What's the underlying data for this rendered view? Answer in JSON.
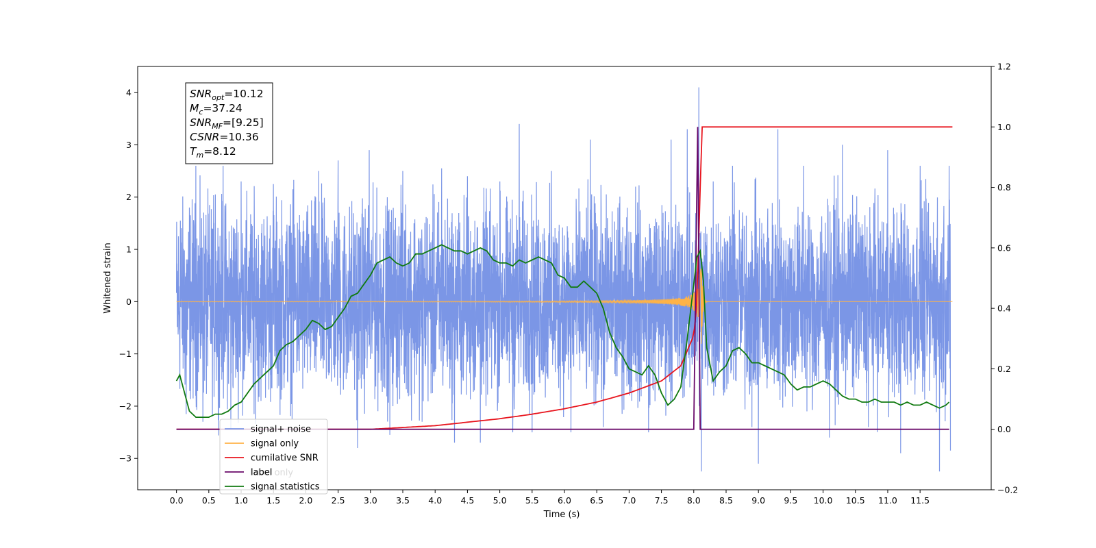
{
  "chart_data": {
    "type": "line",
    "title": "",
    "xlabel": "Time (s)",
    "ylabel": "Whitened strain",
    "y2label": "",
    "xlim": [
      -0.6,
      12.6
    ],
    "ylim": [
      -3.6,
      4.5
    ],
    "y2lim": [
      -0.2,
      1.2
    ],
    "x_ticks": [
      0.0,
      0.5,
      1.0,
      1.5,
      2.0,
      2.5,
      3.0,
      3.5,
      4.0,
      4.5,
      5.0,
      5.5,
      6.0,
      6.5,
      7.0,
      7.5,
      8.0,
      8.5,
      9.0,
      9.5,
      10.0,
      10.5,
      11.0,
      11.5
    ],
    "x_tick_labels": [
      "0.0",
      "0.5",
      "1.0",
      "1.5",
      "2.0",
      "2.5",
      "3.0",
      "3.5",
      "4.0",
      "4.5",
      "5.0",
      "5.5",
      "6.0",
      "6.5",
      "7.0",
      "7.5",
      "8.0",
      "8.5",
      "9.0",
      "9.5",
      "10.0",
      "10.5",
      "11.0",
      "11.5"
    ],
    "y_ticks": [
      -3,
      -2,
      -1,
      0,
      1,
      2,
      3,
      4
    ],
    "y_tick_labels": [
      "−3",
      "−2",
      "−1",
      "0",
      "1",
      "2",
      "3",
      "4"
    ],
    "y2_ticks": [
      -0.2,
      0.0,
      0.2,
      0.4,
      0.6,
      0.8,
      1.0,
      1.2
    ],
    "y2_tick_labels": [
      "−0.2",
      "0.0",
      "0.2",
      "0.4",
      "0.6",
      "0.8",
      "1.0",
      "1.2"
    ],
    "grid": false,
    "legend_position": "lower-left",
    "annotation": {
      "lines": [
        {
          "main": "SNR",
          "sub": "opt",
          "value": "=10.12"
        },
        {
          "main": "M",
          "sub": "c",
          "value": "=37.24"
        },
        {
          "main": "SNR",
          "sub": "MF",
          "value": "=[9.25]"
        },
        {
          "main": "CSNR",
          "sub": "",
          "value": "=10.36"
        },
        {
          "main": "T",
          "sub": "m",
          "value": "=8.12"
        }
      ]
    },
    "series": [
      {
        "name": "signal+ noise",
        "axis": "left",
        "color": "#7b96e6",
        "amplitude": 1.25,
        "peaks": [
          [
            0.06,
            1.55
          ],
          [
            0.15,
            -2.15
          ],
          [
            0.2,
            1.8
          ],
          [
            0.3,
            2.6
          ],
          [
            0.41,
            -2.3
          ],
          [
            0.6,
            2.05
          ],
          [
            0.72,
            2.6
          ],
          [
            0.84,
            -2.45
          ],
          [
            1.0,
            2.3
          ],
          [
            1.2,
            -2.15
          ],
          [
            1.5,
            2.25
          ],
          [
            1.8,
            2.15
          ],
          [
            2.2,
            2.5
          ],
          [
            2.5,
            2.7
          ],
          [
            2.8,
            -2.8
          ],
          [
            2.98,
            2.9
          ],
          [
            3.3,
            -2.55
          ],
          [
            3.5,
            2.5
          ],
          [
            3.8,
            -2.3
          ],
          [
            4.1,
            2.55
          ],
          [
            4.3,
            -2.7
          ],
          [
            4.5,
            2.4
          ],
          [
            4.7,
            -2.7
          ],
          [
            5.0,
            2.3
          ],
          [
            5.2,
            -2.5
          ],
          [
            5.3,
            3.4
          ],
          [
            5.5,
            -2.5
          ],
          [
            5.8,
            2.5
          ],
          [
            6.1,
            -2.5
          ],
          [
            6.4,
            3.1
          ],
          [
            6.6,
            -2.4
          ],
          [
            7.1,
            2.2
          ],
          [
            7.3,
            -2.5
          ],
          [
            7.65,
            3.1
          ],
          [
            7.9,
            3.3
          ],
          [
            8.08,
            4.1
          ],
          [
            8.12,
            -3.25
          ],
          [
            8.3,
            2.3
          ],
          [
            8.6,
            2.6
          ],
          [
            8.9,
            -2.4
          ],
          [
            9.0,
            -3.1
          ],
          [
            9.3,
            3.3
          ],
          [
            9.7,
            2.6
          ],
          [
            10.1,
            -2.6
          ],
          [
            10.3,
            3.0
          ],
          [
            10.7,
            -2.4
          ],
          [
            11.0,
            2.9
          ],
          [
            11.2,
            -2.9
          ],
          [
            11.5,
            2.6
          ],
          [
            11.8,
            -3.25
          ],
          [
            11.95,
            2.6
          ],
          [
            11.97,
            -2.85
          ]
        ]
      },
      {
        "name": "signal only",
        "axis": "left",
        "color": "#ffb347",
        "chirp_merger_time": 8.12,
        "chirp_peak_amplitude": 1.0
      },
      {
        "name": "cumilative SNR",
        "axis": "right",
        "color": "#e8141d",
        "x": [
          0.0,
          3.0,
          4.0,
          5.0,
          5.5,
          6.0,
          6.5,
          7.0,
          7.5,
          7.8,
          8.0,
          8.05,
          8.1,
          8.12,
          12.0
        ],
        "y": [
          0.0,
          0.0,
          0.012,
          0.035,
          0.05,
          0.068,
          0.09,
          0.12,
          0.16,
          0.21,
          0.31,
          0.42,
          0.8,
          1.0,
          1.0
        ]
      },
      {
        "name": "label",
        "axis": "right",
        "color": "#6a0a6a",
        "x": [
          0.0,
          8.0,
          8.06,
          8.1,
          11.95
        ],
        "y": [
          0.0,
          0.0,
          1.0,
          0.0,
          0.0
        ]
      },
      {
        "name": "signal statistics",
        "axis": "right",
        "color": "#107a10",
        "x": [
          0.0,
          0.05,
          0.1,
          0.2,
          0.3,
          0.4,
          0.5,
          0.6,
          0.7,
          0.8,
          0.9,
          1.0,
          1.1,
          1.2,
          1.3,
          1.4,
          1.5,
          1.6,
          1.7,
          1.8,
          1.9,
          2.0,
          2.1,
          2.2,
          2.3,
          2.4,
          2.5,
          2.6,
          2.7,
          2.8,
          2.9,
          3.0,
          3.1,
          3.2,
          3.3,
          3.4,
          3.5,
          3.6,
          3.7,
          3.8,
          3.9,
          4.0,
          4.1,
          4.2,
          4.3,
          4.4,
          4.5,
          4.6,
          4.7,
          4.8,
          4.9,
          5.0,
          5.1,
          5.2,
          5.3,
          5.4,
          5.5,
          5.6,
          5.7,
          5.8,
          5.9,
          6.0,
          6.1,
          6.2,
          6.3,
          6.4,
          6.5,
          6.6,
          6.7,
          6.8,
          6.9,
          7.0,
          7.1,
          7.2,
          7.3,
          7.4,
          7.5,
          7.6,
          7.7,
          7.8,
          7.9,
          8.0,
          8.05,
          8.1,
          8.15,
          8.2,
          8.3,
          8.4,
          8.5,
          8.6,
          8.7,
          8.8,
          8.9,
          9.0,
          9.1,
          9.2,
          9.3,
          9.4,
          9.5,
          9.6,
          9.7,
          9.8,
          9.9,
          10.0,
          10.1,
          10.2,
          10.3,
          10.4,
          10.5,
          10.6,
          10.7,
          10.8,
          10.9,
          11.0,
          11.1,
          11.2,
          11.3,
          11.4,
          11.5,
          11.6,
          11.7,
          11.8,
          11.9,
          11.95
        ],
        "y": [
          0.16,
          0.18,
          0.14,
          0.06,
          0.04,
          0.04,
          0.04,
          0.05,
          0.05,
          0.06,
          0.08,
          0.09,
          0.12,
          0.15,
          0.17,
          0.19,
          0.21,
          0.26,
          0.28,
          0.29,
          0.31,
          0.33,
          0.36,
          0.35,
          0.33,
          0.34,
          0.37,
          0.4,
          0.44,
          0.45,
          0.48,
          0.51,
          0.55,
          0.56,
          0.57,
          0.55,
          0.54,
          0.55,
          0.58,
          0.58,
          0.59,
          0.6,
          0.61,
          0.6,
          0.59,
          0.59,
          0.58,
          0.59,
          0.6,
          0.59,
          0.56,
          0.55,
          0.55,
          0.54,
          0.56,
          0.55,
          0.56,
          0.57,
          0.56,
          0.55,
          0.51,
          0.5,
          0.47,
          0.47,
          0.49,
          0.47,
          0.45,
          0.4,
          0.32,
          0.27,
          0.24,
          0.2,
          0.19,
          0.18,
          0.21,
          0.18,
          0.12,
          0.08,
          0.1,
          0.14,
          0.3,
          0.48,
          0.57,
          0.59,
          0.49,
          0.27,
          0.16,
          0.19,
          0.21,
          0.26,
          0.27,
          0.25,
          0.22,
          0.22,
          0.21,
          0.2,
          0.19,
          0.18,
          0.15,
          0.13,
          0.14,
          0.14,
          0.15,
          0.16,
          0.15,
          0.13,
          0.11,
          0.1,
          0.1,
          0.09,
          0.09,
          0.1,
          0.09,
          0.09,
          0.09,
          0.08,
          0.09,
          0.08,
          0.08,
          0.09,
          0.08,
          0.07,
          0.08,
          0.09
        ]
      }
    ],
    "legend_entries": [
      "signal+ noise",
      "signal only",
      "cumilative SNR",
      "label",
      "signal statistics"
    ],
    "legend_hidden_text": "label only"
  }
}
